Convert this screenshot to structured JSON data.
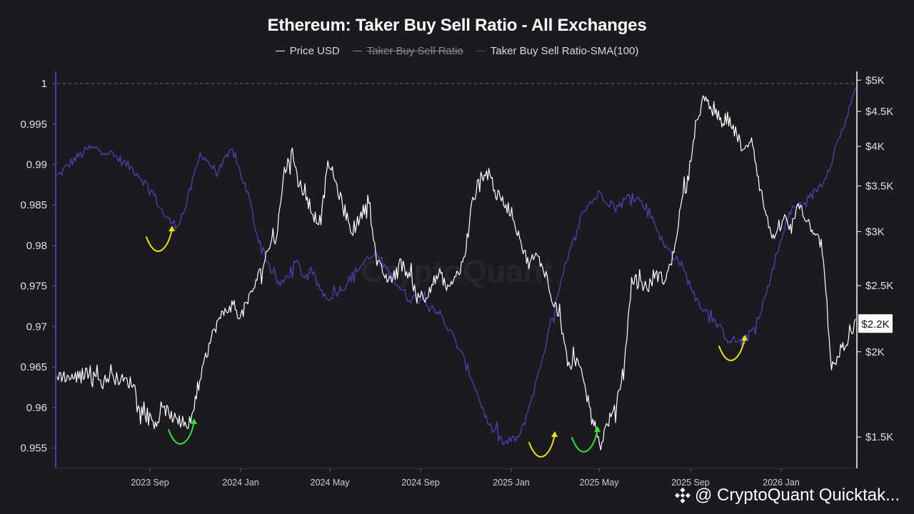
{
  "chart_data": {
    "type": "line",
    "title": "Ethereum: Taker Buy Sell Ratio - All Exchanges",
    "legend": [
      {
        "name": "Price USD",
        "color": "#ffffff",
        "hidden": false
      },
      {
        "name": "Taker Buy Sell Ratio",
        "color": "#8a8a8a",
        "hidden": true
      },
      {
        "name": "Taker Buy Sell Ratio-SMA(100)",
        "color": "#4a3fb0",
        "hidden": false
      }
    ],
    "x_ticks": [
      "2023 Sep",
      "2024 Jan",
      "2024 May",
      "2024 Sep",
      "2025 Jan",
      "2025 May",
      "2025 Sep",
      "2026 Jan"
    ],
    "left_axis": {
      "ticks": [
        "1",
        "0.995",
        "0.99",
        "0.985",
        "0.98",
        "0.975",
        "0.97",
        "0.965",
        "0.96",
        "0.955"
      ],
      "ylim": [
        0.9525,
        1.0015
      ],
      "reference_line": 1.0
    },
    "right_axis": {
      "scale": "log",
      "ticks": [
        "$5K",
        "$4.5K",
        "$4K",
        "$3.5K",
        "$3K",
        "$2.5K",
        "$2K",
        "$1.5K"
      ],
      "ylim": [
        1350,
        5150
      ],
      "current_label": "$2.2K",
      "current_value": 2200
    },
    "series": [
      {
        "name": "Price USD",
        "color": "#ffffff",
        "x": [
          0,
          0.02,
          0.04,
          0.05,
          0.055,
          0.065,
          0.08,
          0.095,
          0.105,
          0.115,
          0.125,
          0.135,
          0.15,
          0.165,
          0.175,
          0.19,
          0.2,
          0.21,
          0.22,
          0.23,
          0.24,
          0.25,
          0.255,
          0.265,
          0.275,
          0.285,
          0.295,
          0.305,
          0.315,
          0.32,
          0.33,
          0.34,
          0.35,
          0.36,
          0.37,
          0.38,
          0.39,
          0.4,
          0.41,
          0.42,
          0.43,
          0.44,
          0.45,
          0.46,
          0.47,
          0.48,
          0.49,
          0.5,
          0.51,
          0.52,
          0.53,
          0.54,
          0.55,
          0.56,
          0.57,
          0.58,
          0.59,
          0.6,
          0.61,
          0.62,
          0.63,
          0.64,
          0.65,
          0.66,
          0.67,
          0.68,
          0.69,
          0.7,
          0.71,
          0.72,
          0.725,
          0.73,
          0.74,
          0.75,
          0.76,
          0.77,
          0.78,
          0.79,
          0.8,
          0.81,
          0.82,
          0.83,
          0.84,
          0.85,
          0.86,
          0.87,
          0.875,
          0.88,
          0.89,
          0.9,
          0.91,
          0.92,
          0.93,
          0.94,
          0.95,
          0.96,
          0.97,
          0.98,
          0.99,
          1.0
        ],
        "values": [
          1850,
          1830,
          1870,
          1880,
          1790,
          1840,
          1820,
          1800,
          1650,
          1590,
          1580,
          1650,
          1580,
          1560,
          1720,
          2040,
          2200,
          2290,
          2350,
          2250,
          2380,
          2550,
          2620,
          2850,
          2950,
          3700,
          3900,
          3500,
          3300,
          3180,
          3100,
          3800,
          3500,
          3200,
          3000,
          3150,
          3350,
          2720,
          2580,
          2550,
          2700,
          2600,
          2450,
          2400,
          2520,
          2600,
          2450,
          2580,
          2720,
          3300,
          3600,
          3700,
          3400,
          3300,
          3200,
          2900,
          2700,
          2760,
          2650,
          2400,
          2250,
          1900,
          1950,
          1800,
          1620,
          1450,
          1580,
          1650,
          1900,
          2500,
          2560,
          2520,
          2480,
          2600,
          2550,
          2700,
          3200,
          3600,
          4300,
          4700,
          4500,
          4350,
          4400,
          4200,
          3900,
          4150,
          3800,
          3500,
          3100,
          2900,
          3150,
          3000,
          3300,
          3100,
          3000,
          2700,
          1850,
          2000,
          2050,
          2200
        ],
        "axis": "right"
      },
      {
        "name": "Taker Buy Sell Ratio-SMA(100)",
        "color": "#4a3fb0",
        "x": [
          0,
          0.02,
          0.04,
          0.06,
          0.08,
          0.1,
          0.12,
          0.13,
          0.14,
          0.15,
          0.16,
          0.18,
          0.2,
          0.22,
          0.24,
          0.25,
          0.26,
          0.27,
          0.28,
          0.3,
          0.31,
          0.32,
          0.33,
          0.34,
          0.36,
          0.38,
          0.4,
          0.42,
          0.44,
          0.46,
          0.48,
          0.5,
          0.52,
          0.54,
          0.56,
          0.58,
          0.6,
          0.62,
          0.64,
          0.66,
          0.68,
          0.7,
          0.72,
          0.74,
          0.75,
          0.76,
          0.78,
          0.8,
          0.82,
          0.84,
          0.86,
          0.88,
          0.9,
          0.92,
          0.94,
          0.96,
          0.97,
          0.98,
          0.99,
          1.0
        ],
        "values": [
          0.9885,
          0.9905,
          0.992,
          0.9918,
          0.9905,
          0.989,
          0.9865,
          0.9845,
          0.983,
          0.9825,
          0.9845,
          0.9915,
          0.989,
          0.9918,
          0.986,
          0.9815,
          0.979,
          0.9765,
          0.975,
          0.978,
          0.976,
          0.9765,
          0.9745,
          0.9735,
          0.975,
          0.9775,
          0.979,
          0.976,
          0.9735,
          0.9735,
          0.9715,
          0.968,
          0.9635,
          0.958,
          0.9555,
          0.9565,
          0.963,
          0.971,
          0.9785,
          0.9845,
          0.9865,
          0.9845,
          0.9865,
          0.9845,
          0.9825,
          0.98,
          0.978,
          0.9735,
          0.971,
          0.9685,
          0.968,
          0.971,
          0.9785,
          0.9845,
          0.9855,
          0.988,
          0.9905,
          0.9935,
          0.996,
          0.9995
        ],
        "axis": "left"
      }
    ],
    "annotations": [
      {
        "color": "#f4e100",
        "label": "yellow curved arrow",
        "at": [
          "2023 Aug",
          0.9815
        ]
      },
      {
        "color": "#2ee62e",
        "label": "green curved arrow",
        "at": [
          "2023 Oct",
          0.9575
        ]
      },
      {
        "color": "#f4e100",
        "label": "yellow curved arrow",
        "at": [
          "2025 Feb",
          0.9555
        ]
      },
      {
        "color": "#2ee62e",
        "label": "green curved arrow",
        "at": [
          "2025 Apr",
          0.9555
        ]
      },
      {
        "color": "#f4e100",
        "label": "yellow curved arrow",
        "at": [
          "2025 Nov",
          0.9665
        ]
      }
    ],
    "watermark": "CryptoQuant"
  },
  "footer": {
    "brand": "@ CryptoQuant Quicktak..."
  }
}
